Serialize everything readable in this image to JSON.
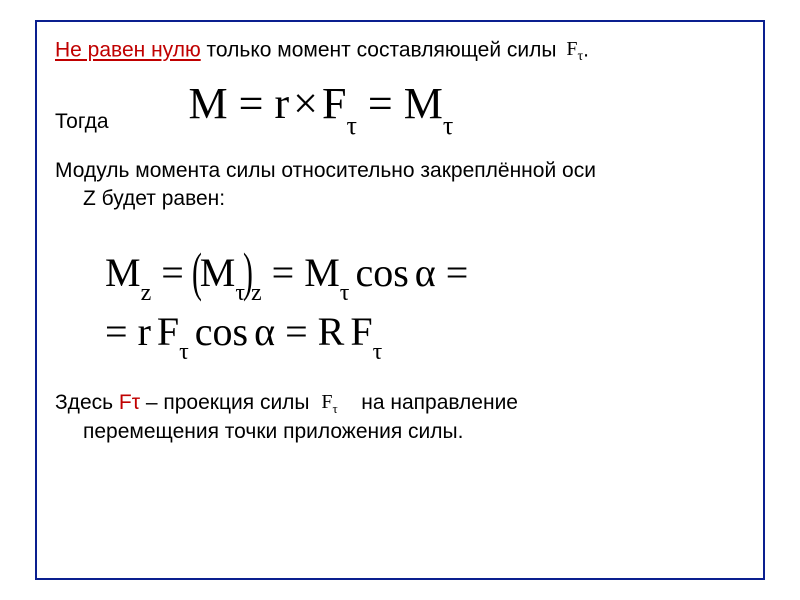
{
  "frame": {
    "border_color": "#0a1f8f",
    "border_width": 2
  },
  "fontsizes": {
    "body": 21,
    "eq_main": 44,
    "eq_sec": 40,
    "sub_main": 26,
    "sub_sec": 24,
    "inline_sym": 20
  },
  "colors": {
    "text": "#000000",
    "red": "#c00000",
    "bg": "#ffffff"
  },
  "line1": {
    "red_part": "Не равен нулю",
    "rest": " только момент составляющей  силы",
    "dot": ".",
    "sym_F": "F",
    "sym_tau": "τ"
  },
  "togda": "Тогда",
  "eq1": {
    "M": "M",
    "eq": " = ",
    "r": "r",
    "times": "×",
    "F": "F",
    "tau": "τ",
    "eq2": " = ",
    "M2": "M",
    "tau2": "τ"
  },
  "line_mod": {
    "l1": "Модуль момента силы  относительно закреплённой оси",
    "l2": "Z будет равен:"
  },
  "eq2": {
    "row1": {
      "Mz_M": "M",
      "Mz_z": "z",
      "eq": " = ",
      "Mtau_M": "M",
      "Mtau_t": "τ",
      "outer_z": "z",
      "eq2": " = ",
      "M3": "M",
      "t3": "τ",
      "sp": " ",
      "cos": "cos",
      "al": "α",
      "eq3": " ="
    },
    "row2": {
      "eq": "= ",
      "r": "r",
      "sp": " ",
      "F": "F",
      "t": "τ",
      "sp2": " ",
      "cos": "cos",
      "al": "α",
      "eq2": " = ",
      "R": "R",
      "sp3": " ",
      "F2": "F",
      "t2": "τ"
    }
  },
  "foot": {
    "pre": "Здесь ",
    "Ftau": "Fτ",
    "mid": " – проекция   силы",
    "sym_F": "F",
    "sym_tau": "τ",
    "post1": "на направление",
    "post2": "перемещения точки приложения силы."
  }
}
